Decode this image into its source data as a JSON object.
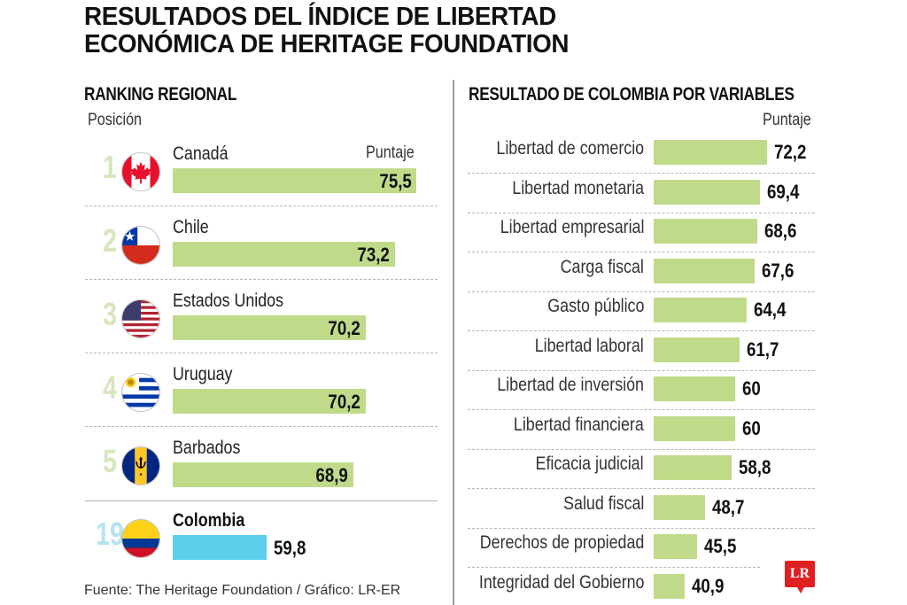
{
  "title": {
    "line1": "RESULTADOS DEL ÍNDICE DE LIBERTAD",
    "line2": "ECONÓMICA DE HERITAGE FOUNDATION"
  },
  "left": {
    "title": "RANKING REGIONAL",
    "position_label": "Posición",
    "score_label": "Puntaje"
  },
  "right": {
    "title": "RESULTADO DE COLOMBIA POR VARIABLES",
    "score_label": "Puntaje"
  },
  "source": "Fuente: The Heritage Foundation / Gráfico: LR-ER",
  "logo": "LR",
  "colors": {
    "bar_green": "#bfdb8a",
    "bar_colombia": "#5bd0ea",
    "rank_green": "#d6e6bd",
    "rank_colombia": "#b6e3ef",
    "logo_red": "#e02020"
  },
  "chart_data": [
    {
      "type": "bar",
      "orientation": "horizontal",
      "title": "RANKING REGIONAL",
      "xlabel": "Puntaje",
      "ylabel": "Posición",
      "categories": [
        "Canadá",
        "Chile",
        "Estados Unidos",
        "Uruguay",
        "Barbados",
        "Colombia"
      ],
      "positions": [
        "1",
        "2",
        "3",
        "4",
        "5",
        "19"
      ],
      "flags": [
        "canada-flag-icon",
        "chile-flag-icon",
        "usa-flag-icon",
        "uruguay-flag-icon",
        "barbados-flag-icon",
        "colombia-flag-icon"
      ],
      "values": [
        75.5,
        73.2,
        70.2,
        70.2,
        68.9,
        59.8
      ],
      "value_labels": [
        "75,5",
        "73,2",
        "70,2",
        "70,2",
        "68,9",
        "59,8"
      ],
      "highlight": "Colombia"
    },
    {
      "type": "bar",
      "orientation": "horizontal",
      "title": "RESULTADO DE COLOMBIA POR VARIABLES",
      "xlabel": "Puntaje",
      "categories": [
        "Libertad de comercio",
        "Libertad monetaria",
        "Libertad empresarial",
        "Carga fiscal",
        "Gasto público",
        "Libertad laboral",
        "Libertad de inversión",
        "Libertad financiera",
        "Eficacia judicial",
        "Salud fiscal",
        "Derechos de propiedad",
        "Integridad del Gobierno"
      ],
      "values": [
        72.2,
        69.4,
        68.6,
        67.6,
        64.4,
        61.7,
        60,
        60,
        58.8,
        48.7,
        45.5,
        40.9
      ],
      "value_labels": [
        "72,2",
        "69,4",
        "68,6",
        "67,6",
        "64,4",
        "61,7",
        "60",
        "60",
        "58,8",
        "48,7",
        "45,5",
        "40,9"
      ]
    }
  ]
}
